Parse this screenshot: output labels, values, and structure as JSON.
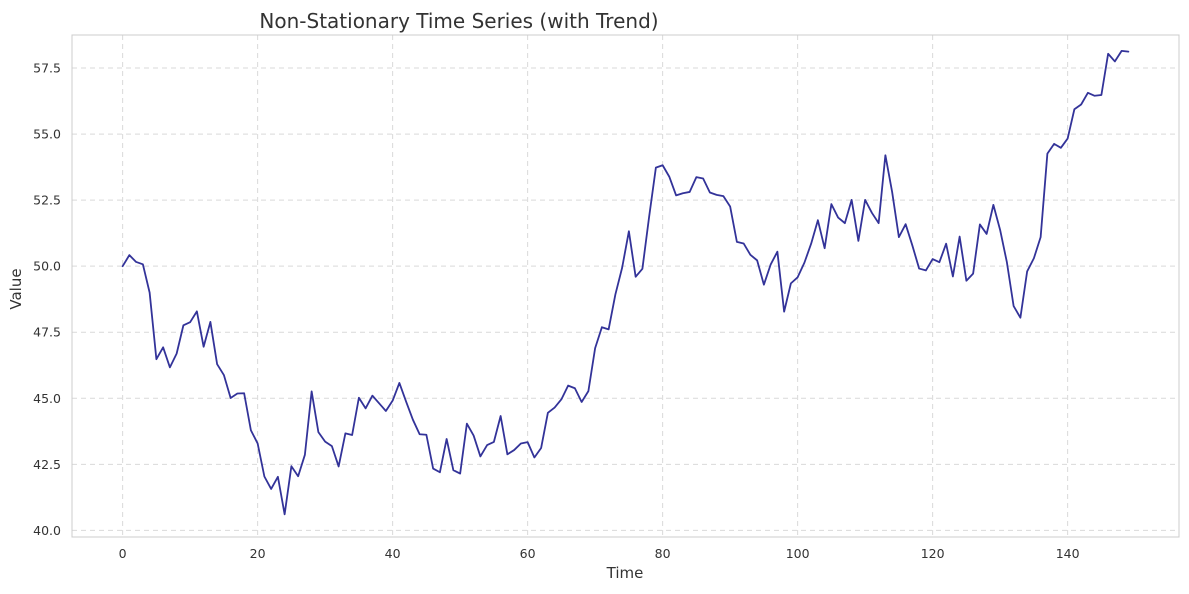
{
  "chart_data": {
    "type": "line",
    "title": "Non-Stationary Time Series (with Trend)",
    "xlabel": "Time",
    "ylabel": "Value",
    "xlim": [
      -7.5,
      156.5
    ],
    "ylim": [
      39.75,
      58.75
    ],
    "xticks": [
      0,
      20,
      40,
      60,
      80,
      100,
      120,
      140
    ],
    "xtick_labels": [
      "0",
      "20",
      "40",
      "60",
      "80",
      "100",
      "120",
      "140"
    ],
    "yticks": [
      40.0,
      42.5,
      45.0,
      47.5,
      50.0,
      52.5,
      55.0,
      57.5
    ],
    "ytick_labels": [
      "40.0",
      "42.5",
      "45.0",
      "47.5",
      "50.0",
      "52.5",
      "55.0",
      "57.5"
    ],
    "grid": true,
    "legend": "none",
    "colors": {
      "line": "#333399",
      "grid": "#d9d9d9",
      "frame": "#cccccc",
      "background": "#ffffff"
    },
    "series": [
      {
        "x": [
          0,
          1,
          2,
          3,
          4,
          5,
          6,
          7,
          8,
          9,
          10,
          11,
          12,
          13,
          14,
          15,
          16,
          17,
          18,
          19,
          20,
          21,
          22,
          23,
          24,
          25,
          26,
          27,
          28,
          29,
          30,
          31,
          32,
          33,
          34,
          35,
          36,
          37,
          38,
          39,
          40,
          41,
          42,
          43,
          44,
          45,
          46,
          47,
          48,
          49,
          50,
          51,
          52,
          53,
          54,
          55,
          56,
          57,
          58,
          59,
          60,
          61,
          62,
          63,
          64,
          65,
          66,
          67,
          68,
          69,
          70,
          71,
          72,
          73,
          74,
          75,
          76,
          77,
          78,
          79,
          80,
          81,
          82,
          83,
          84,
          85,
          86,
          87,
          88,
          89,
          90,
          91,
          92,
          93,
          94,
          95,
          96,
          97,
          98,
          99,
          100,
          101,
          102,
          103,
          104,
          105,
          106,
          107,
          108,
          109,
          110,
          111,
          112,
          113,
          114,
          115,
          116,
          117,
          118,
          119,
          120,
          121,
          122,
          123,
          124,
          125,
          126,
          127,
          128,
          129,
          130,
          131,
          132,
          133,
          134,
          135,
          136,
          137,
          138,
          139,
          140,
          141,
          142,
          143,
          144,
          145,
          146,
          147,
          148,
          149
        ],
        "values": [
          50.0,
          50.42,
          50.16,
          50.07,
          49.0,
          46.48,
          46.93,
          46.17,
          46.69,
          47.76,
          47.88,
          48.29,
          46.95,
          47.89,
          46.29,
          45.88,
          45.01,
          45.18,
          45.19,
          43.79,
          43.29,
          42.04,
          41.57,
          42.03,
          40.61,
          42.43,
          42.05,
          42.86,
          45.26,
          43.72,
          43.36,
          43.19,
          42.42,
          43.67,
          43.61,
          45.02,
          44.62,
          45.1,
          44.81,
          44.52,
          44.91,
          45.58,
          44.87,
          44.19,
          43.64,
          43.62,
          42.34,
          42.2,
          43.46,
          42.28,
          42.15,
          44.04,
          43.59,
          42.8,
          43.23,
          43.35,
          44.33,
          42.88,
          43.04,
          43.29,
          43.34,
          42.76,
          43.12,
          44.45,
          44.65,
          44.96,
          45.48,
          45.38,
          44.86,
          45.27,
          46.9,
          47.69,
          47.61,
          48.93,
          49.94,
          51.32,
          49.6,
          49.9,
          51.87,
          53.73,
          53.82,
          53.38,
          52.68,
          52.76,
          52.81,
          53.37,
          53.32,
          52.79,
          52.7,
          52.65,
          52.26,
          50.92,
          50.86,
          50.43,
          50.22,
          49.3,
          50.06,
          50.55,
          48.28,
          49.35,
          49.58,
          50.13,
          50.85,
          51.74,
          50.68,
          52.35,
          51.84,
          51.63,
          52.51,
          50.96,
          52.51,
          52.02,
          51.63,
          54.2,
          52.81,
          51.1,
          51.59,
          50.78,
          49.91,
          49.84,
          50.27,
          50.15,
          50.85,
          49.61,
          51.12,
          49.45,
          49.72,
          51.58,
          51.22,
          52.32,
          51.37,
          50.15,
          48.49,
          48.05,
          49.8,
          50.3,
          51.1,
          54.26,
          54.63,
          54.48,
          54.83,
          55.94,
          56.12,
          56.56,
          56.45,
          56.48,
          58.04,
          57.75,
          58.15,
          58.12
        ]
      }
    ]
  }
}
